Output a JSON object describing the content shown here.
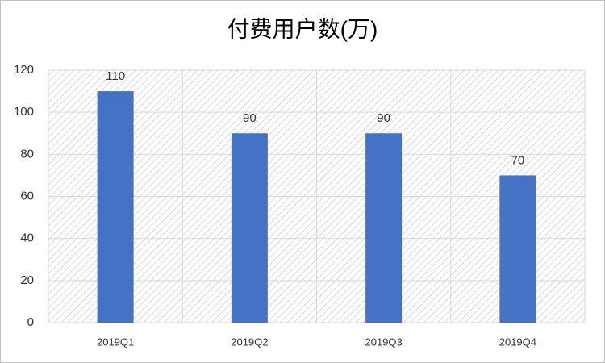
{
  "chart_data": {
    "type": "bar",
    "title": "付费用户数(万)",
    "categories": [
      "2019Q1",
      "2019Q2",
      "2019Q3",
      "2019Q4"
    ],
    "values": [
      110,
      90,
      90,
      70
    ],
    "color": "#4472c4",
    "ylim": [
      0,
      120
    ],
    "yticks": [
      0,
      20,
      40,
      60,
      80,
      100,
      120
    ],
    "grid": true
  }
}
